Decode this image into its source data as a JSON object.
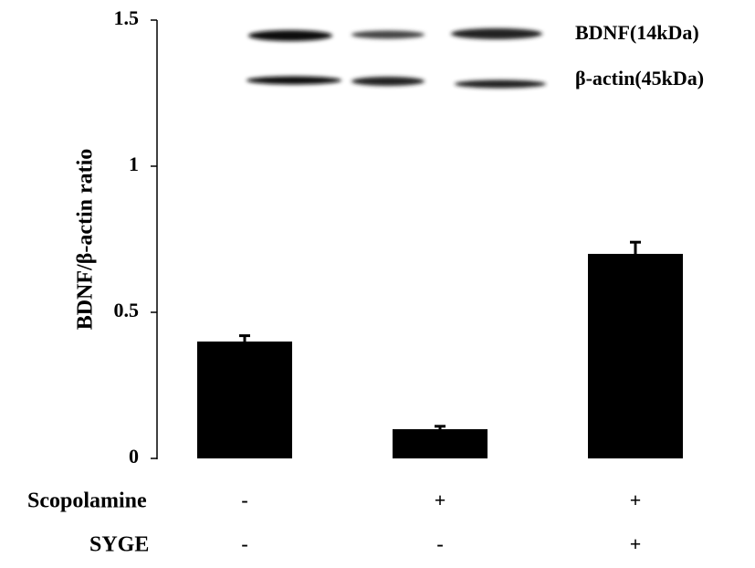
{
  "chart_data": {
    "type": "bar",
    "y_label": "BDNF/β-actin ratio",
    "values": [
      0.4,
      0.1,
      0.7
    ],
    "errors": [
      0.02,
      0.01,
      0.04
    ],
    "color": "#000000",
    "ylim": [
      0,
      1.5
    ],
    "yticks": [
      0,
      0.5,
      1,
      1.5
    ],
    "treatments": [
      {
        "name": "Scopolamine",
        "values": [
          "-",
          "+",
          "+"
        ]
      },
      {
        "name": "SYGE",
        "values": [
          "-",
          "-",
          "+"
        ]
      }
    ],
    "blot_labels": [
      "BDNF(14kDa)",
      "β-actin(45kDa)"
    ]
  }
}
